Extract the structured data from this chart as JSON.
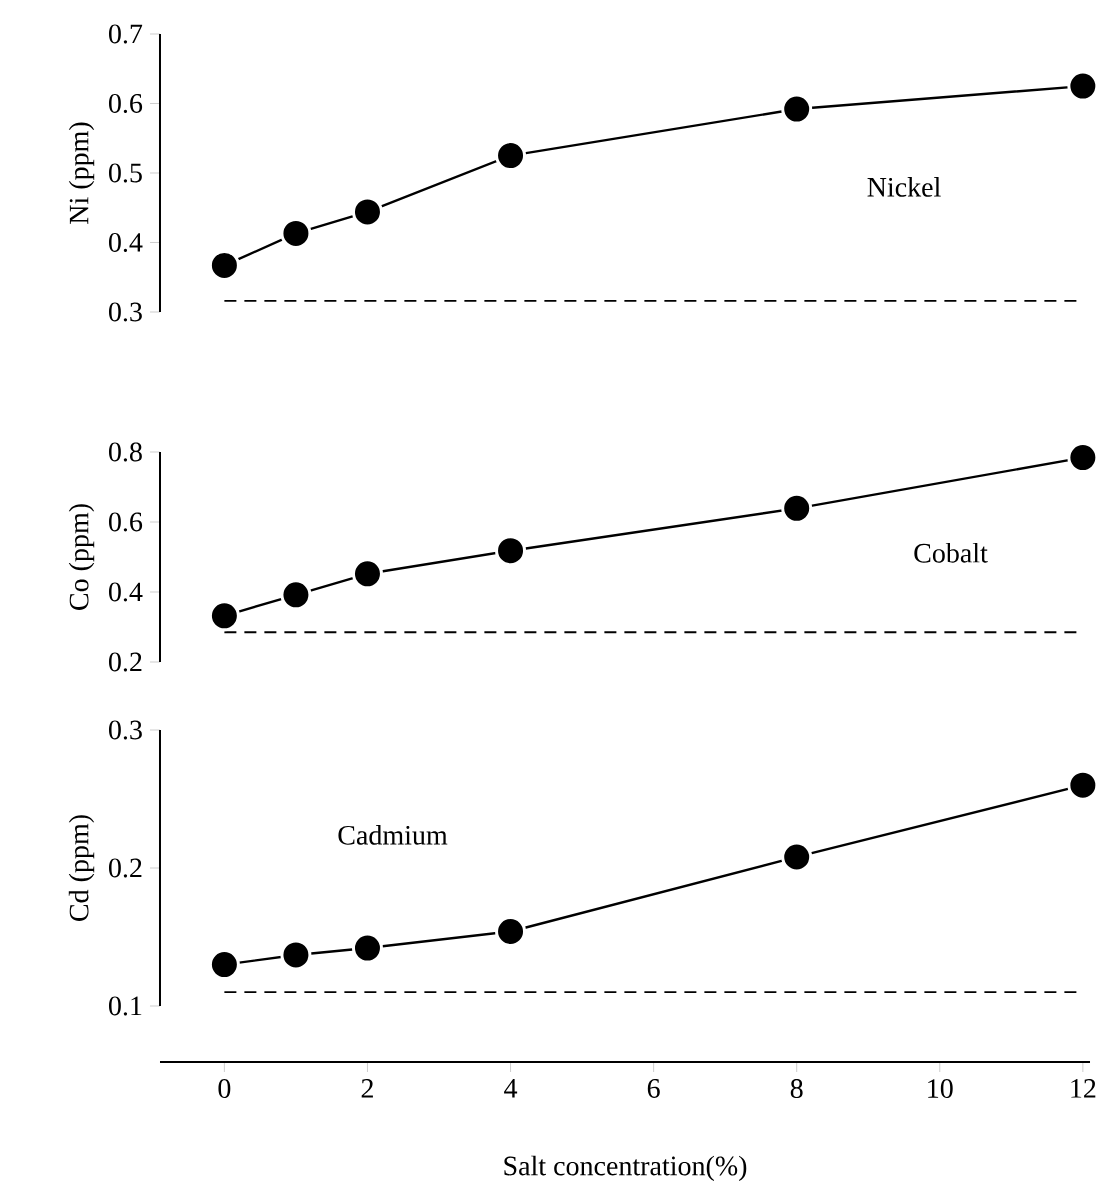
{
  "chart_data": [
    {
      "type": "line",
      "ylabel": "Ni (ppm)",
      "x": [
        0,
        1,
        2,
        4,
        8,
        12
      ],
      "ylim": [
        0.3,
        0.7
      ],
      "yticks": [
        {
          "value": 0.3,
          "label": "0.3"
        },
        {
          "value": 0.4,
          "label": "0.4"
        },
        {
          "value": 0.5,
          "label": "0.5"
        },
        {
          "value": 0.6,
          "label": "0.6"
        },
        {
          "value": 0.7,
          "label": "0.7"
        }
      ],
      "tick_labels": "y",
      "marker": "circle",
      "line_style": "solid",
      "grid": false,
      "series": [
        {
          "name": "Nickel",
          "color": "#000000",
          "values": [
            0.367,
            0.413,
            0.444,
            0.525,
            0.592,
            0.625
          ]
        }
      ],
      "ref_lines": [
        {
          "axis": "y",
          "value": 0.316,
          "line_style": "dashed"
        }
      ]
    },
    {
      "type": "line",
      "ylabel": "Co (ppm)",
      "x": [
        0,
        1,
        2,
        4,
        8,
        12
      ],
      "ylim": [
        0.2,
        0.8
      ],
      "yticks": [
        {
          "value": 0.2,
          "label": "0.2"
        },
        {
          "value": 0.4,
          "label": "0.4"
        },
        {
          "value": 0.6,
          "label": "0.6"
        },
        {
          "value": 0.8,
          "label": "0.8"
        }
      ],
      "tick_labels": "y",
      "marker": "circle",
      "line_style": "solid",
      "grid": false,
      "series": [
        {
          "name": "Cobalt",
          "color": "#000000",
          "values": [
            0.332,
            0.392,
            0.452,
            0.518,
            0.639,
            0.784
          ]
        }
      ],
      "ref_lines": [
        {
          "axis": "y",
          "value": 0.285,
          "line_style": "dashed"
        }
      ]
    },
    {
      "type": "line",
      "xlabel": "Salt concentration(%)",
      "ylabel": "Cd (ppm)",
      "x": [
        0,
        1,
        2,
        4,
        8,
        12
      ],
      "xlim": [
        -0.9,
        12.1
      ],
      "xticks": [
        0,
        2,
        4,
        6,
        8,
        10,
        12
      ],
      "ylim": [
        0.1,
        0.3
      ],
      "yticks": [
        {
          "value": 0.1,
          "label": "0.1"
        },
        {
          "value": 0.2,
          "label": "0.2"
        },
        {
          "value": 0.3,
          "label": "0.3"
        }
      ],
      "marker": "circle",
      "line_style": "solid",
      "grid": false,
      "series": [
        {
          "name": "Cadmium",
          "color": "#000000",
          "values": [
            0.13,
            0.137,
            0.142,
            0.154,
            0.208,
            0.26
          ]
        }
      ],
      "ref_lines": [
        {
          "axis": "y",
          "value": 0.11,
          "line_style": "dashed"
        }
      ]
    }
  ]
}
